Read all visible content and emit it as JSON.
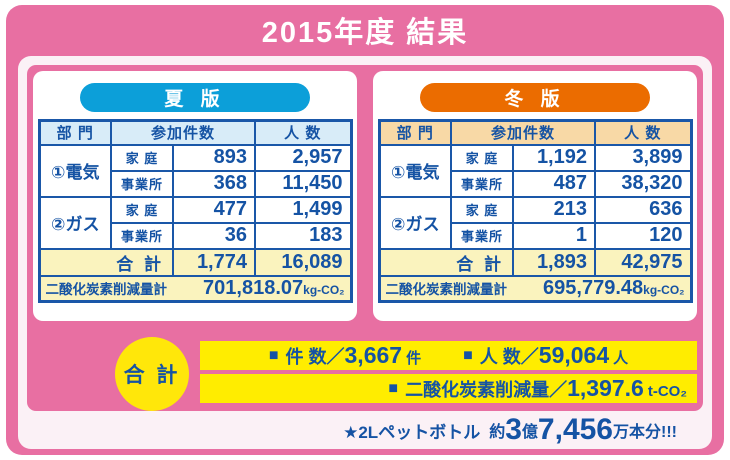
{
  "title": "2015年度 結果",
  "colors": {
    "background_pink": "#E86FA2",
    "frame_white": "#FBF1F6",
    "summer_accent": "#0C9FD9",
    "summer_header_bg": "#D8ECF8",
    "winter_accent": "#EB6C00",
    "winter_header_bg": "#F8D9A6",
    "table_blue": "#1553A4",
    "total_row_bg": "#FAF3BE",
    "highlight_yellow": "#FFED00"
  },
  "glyphs": {
    "square_bullet": "■"
  },
  "table_headers": {
    "dept": "部 門",
    "count": "参加件数",
    "people": "人 数"
  },
  "summer": {
    "pill_label": "夏 版",
    "electric": {
      "category": "①電気",
      "home": {
        "label": "家 庭",
        "count": "893",
        "people": "2,957"
      },
      "office": {
        "label": "事業所",
        "count": "368",
        "people": "11,450"
      }
    },
    "gas": {
      "category": "②ガス",
      "home": {
        "label": "家 庭",
        "count": "477",
        "people": "1,499"
      },
      "office": {
        "label": "事業所",
        "count": "36",
        "people": "183"
      }
    },
    "total": {
      "label": "合 計",
      "count": "1,774",
      "people": "16,089"
    },
    "co2": {
      "label": "二酸化炭素削減量計",
      "value": "701,818.07",
      "unit": "kg-CO₂"
    }
  },
  "winter": {
    "pill_label": "冬 版",
    "electric": {
      "category": "①電気",
      "home": {
        "label": "家 庭",
        "count": "1,192",
        "people": "3,899"
      },
      "office": {
        "label": "事業所",
        "count": "487",
        "people": "38,320"
      }
    },
    "gas": {
      "category": "②ガス",
      "home": {
        "label": "家 庭",
        "count": "213",
        "people": "636"
      },
      "office": {
        "label": "事業所",
        "count": "1",
        "people": "120"
      }
    },
    "total": {
      "label": "合 計",
      "count": "1,893",
      "people": "42,975"
    },
    "co2": {
      "label": "二酸化炭素削減量計",
      "value": "695,779.48",
      "unit": "kg-CO₂"
    }
  },
  "summary": {
    "badge_label": "合 計",
    "cases": {
      "label": "件 数／",
      "value": "3,667",
      "unit": "件"
    },
    "people": {
      "label": "人 数／",
      "value": "59,064",
      "unit": "人"
    },
    "co2": {
      "label": "二酸化炭素削減量／",
      "value": "1,397.6",
      "unit": "t-CO₂"
    }
  },
  "footnote": {
    "prefix": "★2Lペットボトル",
    "approx": "約",
    "hundred_millions": "3",
    "hundred_millions_unit": "億",
    "ten_thousands": "7,456",
    "suffix": "万本分!!!"
  }
}
